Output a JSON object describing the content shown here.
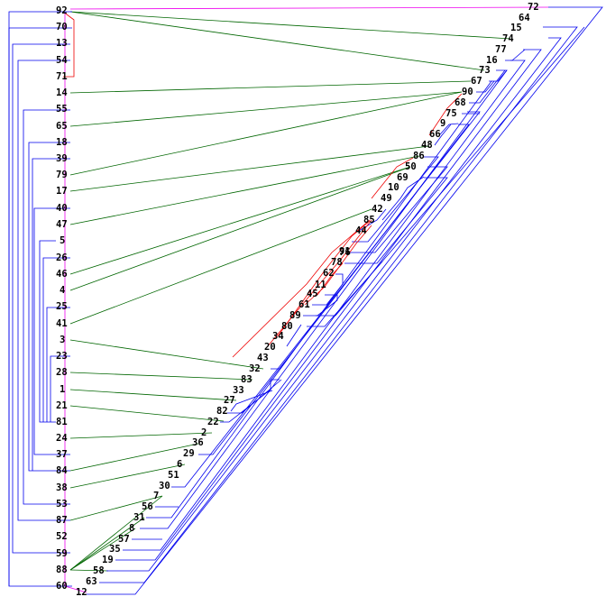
{
  "colors": {
    "blue": "#0000ee",
    "green": "#006600",
    "red": "#ee0000",
    "magenta": "#ee00ee",
    "label": "#000000"
  },
  "labels": [
    "92",
    "70",
    "13",
    "54",
    "71",
    "14",
    "55",
    "65",
    "18",
    "39",
    "79",
    "17",
    "40",
    "47",
    "5",
    "26",
    "46",
    "4",
    "25",
    "41",
    "3",
    "23",
    "28",
    "1",
    "21",
    "81",
    "24",
    "37",
    "84",
    "38",
    "53",
    "87",
    "52",
    "59",
    "88",
    "60",
    "12",
    "63",
    "58",
    "19",
    "35",
    "8",
    "57",
    "31",
    "56",
    "7",
    "30",
    "51",
    "6",
    "29",
    "36",
    "2",
    "22",
    "82",
    "27",
    "33",
    "83",
    "32",
    "43",
    "20",
    "34",
    "80",
    "89",
    "61",
    "45",
    "11",
    "62",
    "78",
    "76",
    "44",
    "85",
    "42",
    "49",
    "10",
    "69",
    "50",
    "86",
    "48",
    "66",
    "9",
    "75",
    "68",
    "90",
    "67",
    "73",
    "16",
    "77",
    "74",
    "15",
    "64",
    "72",
    "91"
  ]
}
